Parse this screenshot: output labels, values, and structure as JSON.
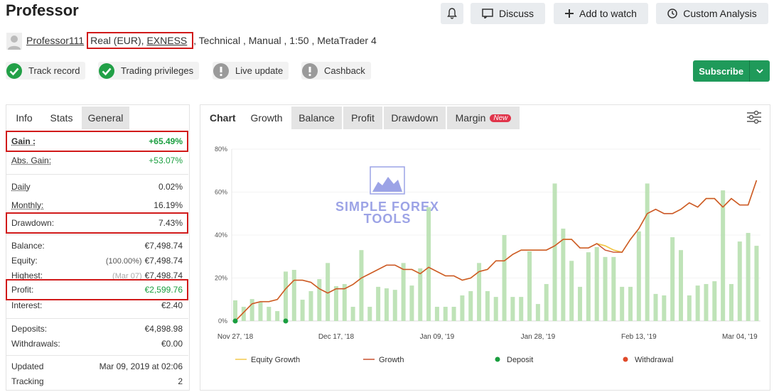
{
  "header": {
    "title": "Professor",
    "buttons": [
      "Discuss",
      "Add to watch",
      "Custom Analysis"
    ]
  },
  "account": {
    "user": "Professor111",
    "type": "Real (EUR),",
    "broker": "EXNESS",
    "details": ", Technical , Manual , 1:50 , MetaTrader 4"
  },
  "badges": [
    {
      "label": "Track record",
      "ok": true
    },
    {
      "label": "Trading privileges",
      "ok": true
    },
    {
      "label": "Live update",
      "ok": false
    },
    {
      "label": "Cashback",
      "ok": false
    }
  ],
  "subscribe": "Subscribe",
  "stats": {
    "tabs": [
      "Info",
      "Stats",
      "General"
    ],
    "rows": [
      {
        "label": "Gain :",
        "value": "+65.49%"
      },
      {
        "label": "Abs. Gain:",
        "value": "+53.07%"
      },
      {
        "label": "Daily",
        "value": "0.02%"
      },
      {
        "label": "Monthly:",
        "value": "16.19%"
      },
      {
        "label": "Drawdown:",
        "value": "7.43%"
      },
      {
        "label": "Balance:",
        "value": "€7,498.74"
      },
      {
        "label": "Equity:",
        "note": "(100.00%)",
        "value": "€7,498.74"
      },
      {
        "label": "Highest:",
        "note": "(Mar 07)",
        "value": "€7,498.74"
      },
      {
        "label": "Profit:",
        "value": "€2,599.76"
      },
      {
        "label": "Interest:",
        "value": "€2.40"
      },
      {
        "label": "Deposits:",
        "value": "€4,898.98"
      },
      {
        "label": "Withdrawals:",
        "value": "€0.00"
      },
      {
        "label": "Updated",
        "value": "Mar 09, 2019 at 02:06"
      },
      {
        "label": "Tracking",
        "value": "2"
      }
    ]
  },
  "chart_tabs": {
    "label": "Chart",
    "tabs": [
      "Growth",
      "Balance",
      "Profit",
      "Drawdown",
      "Margin"
    ],
    "badge": "New"
  },
  "watermark": [
    "SIMPLE FOREX",
    "TOOLS"
  ],
  "chart_data": {
    "type": "bar-line",
    "categories": [
      "Nov 27, '18",
      null,
      null,
      null,
      null,
      null,
      null,
      null,
      null,
      null,
      null,
      null,
      "Dec 17, '18",
      null,
      null,
      null,
      null,
      null,
      null,
      null,
      null,
      null,
      null,
      null,
      "Jan 09, '19",
      null,
      null,
      null,
      null,
      null,
      null,
      null,
      null,
      null,
      null,
      null,
      "Jan 28, '19",
      null,
      null,
      null,
      null,
      null,
      null,
      null,
      null,
      null,
      null,
      null,
      "Feb 13, '19",
      null,
      null,
      null,
      null,
      null,
      null,
      null,
      null,
      null,
      null,
      null,
      "Mar 04, '19",
      null,
      null
    ],
    "bars": {
      "color": "#b8e0b0",
      "values": [
        9.6,
        6.6,
        10.2,
        8.9,
        6.6,
        4.6,
        23,
        23.8,
        9.9,
        13.9,
        19.5,
        27,
        16.2,
        17.2,
        6.6,
        33,
        6.6,
        15.9,
        15.2,
        14.5,
        27,
        16.5,
        24.5,
        53,
        6.6,
        6.6,
        6.6,
        11.9,
        13.9,
        27,
        13.9,
        11.2,
        40,
        11.2,
        11.2,
        32.4,
        7.9,
        17.2,
        64,
        43,
        28,
        15.9,
        32,
        34.4,
        29.8,
        29.8,
        15.9,
        15.9,
        41.7,
        64,
        12.6,
        11.9,
        39,
        33,
        11.9,
        16.5,
        17.2,
        18.5,
        60.8,
        17.2,
        37,
        41,
        35
      ]
    },
    "series": [
      {
        "name": "Equity Growth",
        "color": "#f2c94c",
        "values": [
          0,
          4,
          8,
          9,
          9,
          10,
          15,
          19,
          19,
          18,
          15,
          13,
          15,
          15,
          17,
          20,
          22,
          24,
          26,
          26,
          24,
          24,
          22,
          25,
          23,
          21,
          21,
          19,
          20,
          23,
          24,
          28,
          28,
          31,
          33,
          33,
          33,
          33,
          35,
          38,
          38,
          34,
          34,
          36,
          35,
          33,
          32,
          38,
          43,
          50,
          52,
          50,
          50,
          52,
          55,
          53,
          57,
          57,
          53,
          57,
          54,
          54,
          65.5
        ]
      },
      {
        "name": "Growth",
        "color": "#c9502e",
        "values": [
          0,
          4,
          8,
          9,
          9,
          10,
          15,
          19,
          19,
          18,
          15,
          13,
          15,
          15,
          17,
          20,
          22,
          24,
          26,
          26,
          24,
          24,
          22,
          25,
          23,
          21,
          21,
          19,
          20,
          23,
          24,
          28,
          28,
          31,
          33,
          33,
          33,
          33,
          35,
          38,
          38,
          34,
          34,
          36,
          33,
          32,
          32,
          38,
          43,
          50,
          52,
          50,
          50,
          52,
          55,
          53,
          57,
          57,
          53,
          57,
          54,
          54,
          65.5
        ]
      },
      {
        "name": "Deposit",
        "color": "#1a9e3f",
        "values": [
          0,
          null,
          null,
          null,
          null,
          null,
          0,
          null,
          null,
          null,
          null,
          null,
          null,
          null,
          null,
          null,
          null,
          null,
          null,
          null,
          null,
          null,
          null,
          null,
          null,
          null,
          null,
          null,
          null,
          null,
          null,
          null,
          null,
          null,
          null,
          null,
          null,
          null,
          null,
          null,
          null,
          null,
          null,
          null,
          null,
          null,
          null,
          null,
          null,
          null,
          null,
          null,
          null,
          null,
          null,
          null,
          null,
          null,
          null,
          null,
          null,
          null,
          null
        ]
      },
      {
        "name": "Withdrawal",
        "color": "#e04a2a"
      }
    ],
    "ylim": [
      0,
      80
    ],
    "yticks": [
      {
        "value": 0,
        "label": "0%"
      },
      {
        "value": 20,
        "label": "20%"
      },
      {
        "value": 40,
        "label": "40%"
      },
      {
        "value": 60,
        "label": "60%"
      },
      {
        "value": 80,
        "label": "80%"
      }
    ]
  }
}
